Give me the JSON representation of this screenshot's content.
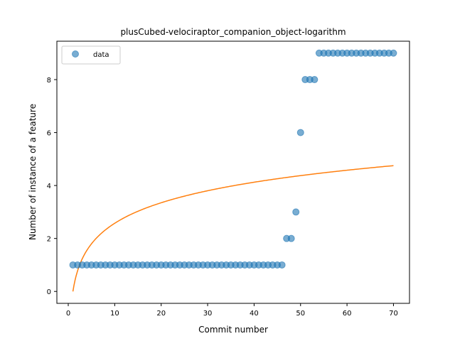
{
  "chart_data": {
    "type": "scatter",
    "title": "plusCubed-velociraptor_companion_object-logarithm",
    "xlabel": "Commit number",
    "ylabel": "Number of instance of a feature",
    "xlim": [
      -2.45,
      73.45
    ],
    "ylim": [
      -0.45,
      9.45
    ],
    "xticks": [
      0,
      10,
      20,
      30,
      40,
      50,
      60,
      70
    ],
    "yticks": [
      0,
      2,
      4,
      6,
      8
    ],
    "grid": false,
    "legend_position": "top-left",
    "series": [
      {
        "name": "data",
        "kind": "scatter",
        "color": "#1f77b4",
        "x": [
          1,
          2,
          3,
          4,
          5,
          6,
          7,
          8,
          9,
          10,
          11,
          12,
          13,
          14,
          15,
          16,
          17,
          18,
          19,
          20,
          21,
          22,
          23,
          24,
          25,
          26,
          27,
          28,
          29,
          30,
          31,
          32,
          33,
          34,
          35,
          36,
          37,
          38,
          39,
          40,
          41,
          42,
          43,
          44,
          45,
          46,
          47,
          48,
          49,
          50,
          51,
          52,
          53,
          54,
          55,
          56,
          57,
          58,
          59,
          60,
          61,
          62,
          63,
          64,
          65,
          66,
          67,
          68,
          69,
          70
        ],
        "y": [
          1,
          1,
          1,
          1,
          1,
          1,
          1,
          1,
          1,
          1,
          1,
          1,
          1,
          1,
          1,
          1,
          1,
          1,
          1,
          1,
          1,
          1,
          1,
          1,
          1,
          1,
          1,
          1,
          1,
          1,
          1,
          1,
          1,
          1,
          1,
          1,
          1,
          1,
          1,
          1,
          1,
          1,
          1,
          1,
          1,
          1,
          2,
          2,
          3,
          6,
          8,
          8,
          8,
          9,
          9,
          9,
          9,
          9,
          9,
          9,
          9,
          9,
          9,
          9,
          9,
          9,
          9,
          9,
          9,
          9
        ]
      },
      {
        "name": "",
        "kind": "line",
        "color": "#ff7f0e",
        "model": "logarithmic",
        "x_start": 1,
        "x_end": 70,
        "y_at_start": 0.0,
        "y_at_end": 4.75
      }
    ]
  }
}
